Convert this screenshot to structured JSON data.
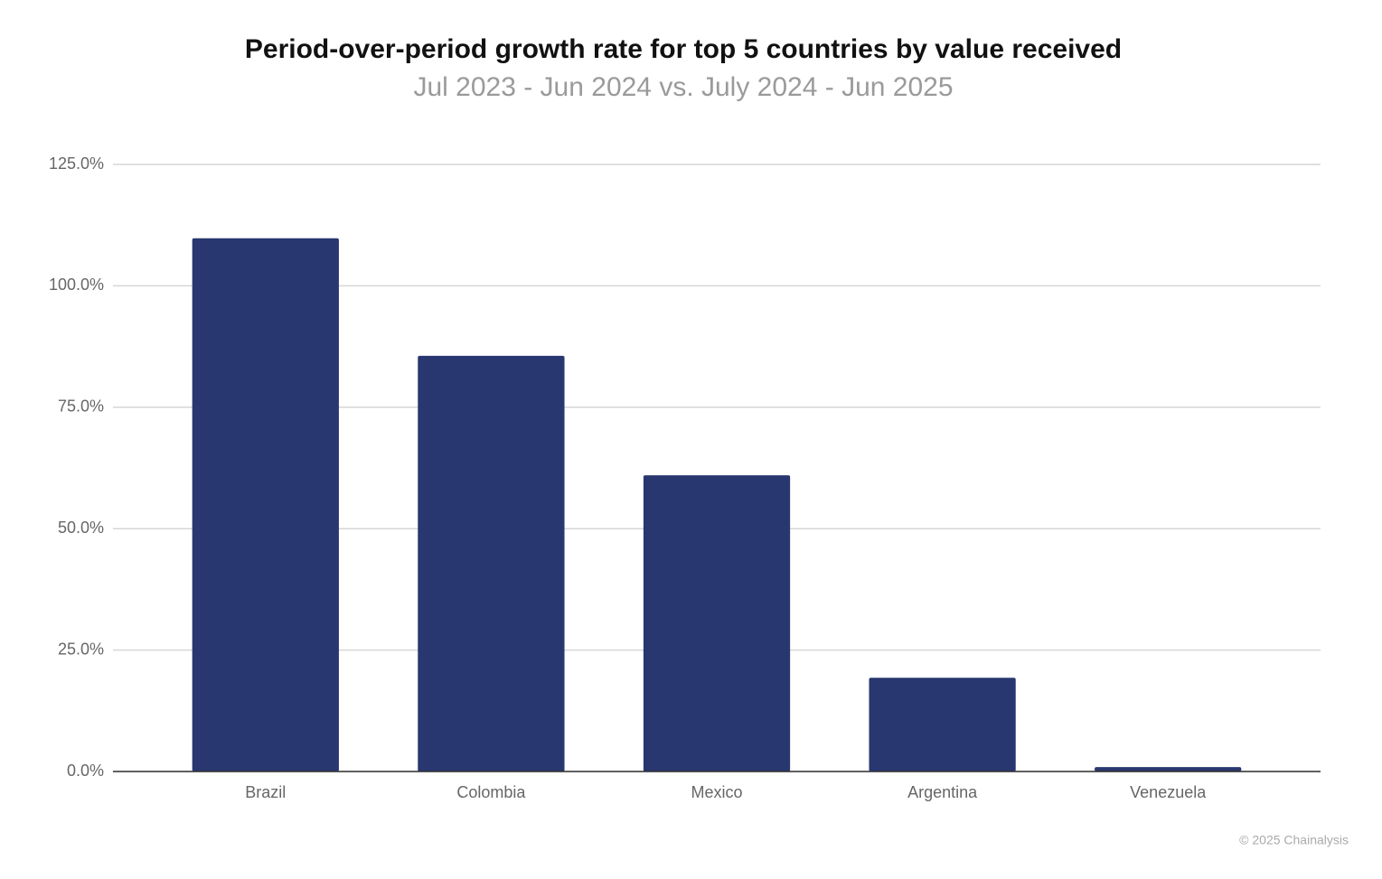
{
  "chart_data": {
    "type": "bar",
    "title": "Period-over-period growth rate for top 5 countries by value received",
    "subtitle": "Jul 2023 - Jun 2024 vs. July 2024 - Jun 2025",
    "categories": [
      "Brazil",
      "Colombia",
      "Mexico",
      "Argentina",
      "Venezuela"
    ],
    "values": [
      109.8,
      85.6,
      61.0,
      19.3,
      0.9
    ],
    "color": "#28376f",
    "ylim": [
      0,
      125
    ],
    "yticks": [
      {
        "value": 0,
        "label": "0.0%"
      },
      {
        "value": 25,
        "label": "25.0%"
      },
      {
        "value": 50,
        "label": "50.0%"
      },
      {
        "value": 75,
        "label": "75.0%"
      },
      {
        "value": 100,
        "label": "100.0%"
      },
      {
        "value": 125,
        "label": "125.0%"
      }
    ],
    "grid": true,
    "credit": "© 2025 Chainalysis"
  }
}
